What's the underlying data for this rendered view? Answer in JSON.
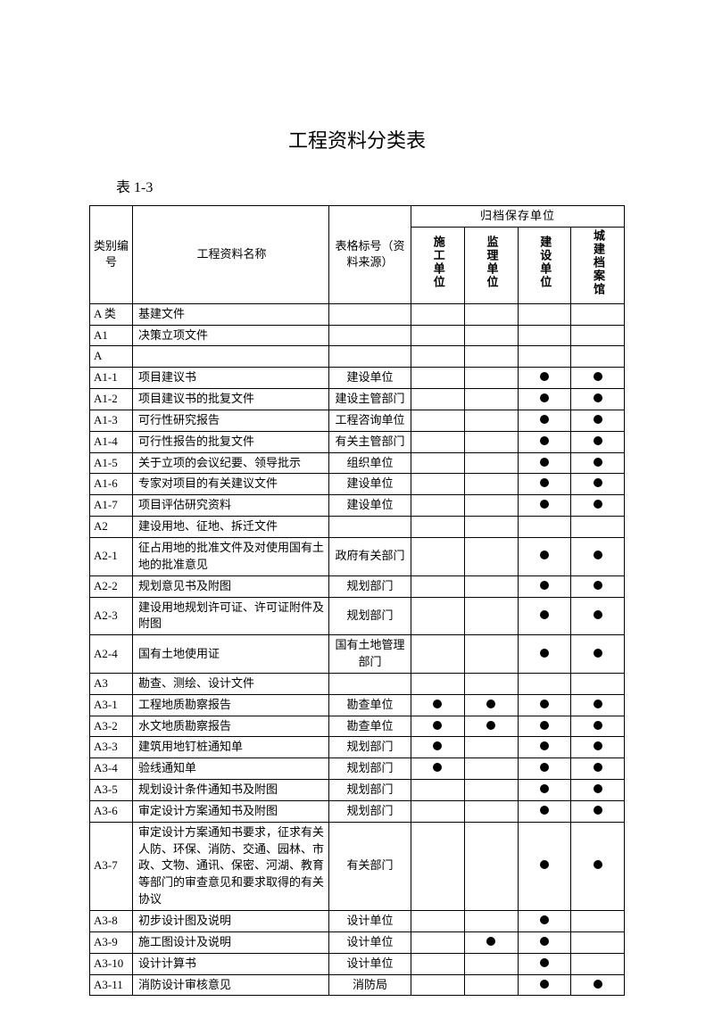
{
  "title": "工程资料分类表",
  "subtitle": "表 1-3",
  "headers": {
    "col_id": "类别编号",
    "col_name": "工程资料名称",
    "col_src": "表格标号（资料来源）",
    "archive_group": "归档保存单位",
    "unit1": "施工单位",
    "unit2": "监理单位",
    "unit3": "建设单位",
    "unit4": "城建档案馆"
  },
  "rows": [
    {
      "id": "A 类",
      "name": "基建文件",
      "src": "",
      "m": [
        0,
        0,
        0,
        0
      ]
    },
    {
      "id": "A1",
      "name": "决策立项文件",
      "src": "",
      "m": [
        0,
        0,
        0,
        0
      ]
    },
    {
      "id": "A",
      "name": "",
      "src": "",
      "m": [
        0,
        0,
        0,
        0
      ]
    },
    {
      "id": "A1-1",
      "name": "项目建议书",
      "src": "建设单位",
      "m": [
        0,
        0,
        1,
        1
      ]
    },
    {
      "id": "A1-2",
      "name": "项目建议书的批复文件",
      "src": "建设主管部门",
      "m": [
        0,
        0,
        1,
        1
      ]
    },
    {
      "id": "A1-3",
      "name": "可行性研究报告",
      "src": "工程咨询单位",
      "m": [
        0,
        0,
        1,
        1
      ]
    },
    {
      "id": "A1-4",
      "name": "可行性报告的批复文件",
      "src": "有关主管部门",
      "m": [
        0,
        0,
        1,
        1
      ]
    },
    {
      "id": "A1-5",
      "name": "关于立项的会议纪要、领导批示",
      "src": "组织单位",
      "m": [
        0,
        0,
        1,
        1
      ]
    },
    {
      "id": "A1-6",
      "name": "专家对项目的有关建议文件",
      "src": "建设单位",
      "m": [
        0,
        0,
        1,
        1
      ]
    },
    {
      "id": "A1-7",
      "name": "项目评估研究资料",
      "src": "建设单位",
      "m": [
        0,
        0,
        1,
        1
      ]
    },
    {
      "id": "A2",
      "name": "建设用地、征地、拆迁文件",
      "src": "",
      "m": [
        0,
        0,
        0,
        0
      ]
    },
    {
      "id": "A2-1",
      "name": "征占用地的批准文件及对使用国有土地的批准意见",
      "src": "政府有关部门",
      "m": [
        0,
        0,
        1,
        1
      ]
    },
    {
      "id": "A2-2",
      "name": "规划意见书及附图",
      "src": "规划部门",
      "m": [
        0,
        0,
        1,
        1
      ]
    },
    {
      "id": "A2-3",
      "name": "建设用地规划许可证、许可证附件及附图",
      "src": "规划部门",
      "m": [
        0,
        0,
        1,
        1
      ]
    },
    {
      "id": "A2-4",
      "name": "国有土地使用证",
      "src": "国有土地管理部门",
      "m": [
        0,
        0,
        1,
        1
      ]
    },
    {
      "id": "A3",
      "name": "勘查、测绘、设计文件",
      "src": "",
      "m": [
        0,
        0,
        0,
        0
      ]
    },
    {
      "id": "A3-1",
      "name": "工程地质勘察报告",
      "src": "勘查单位",
      "m": [
        1,
        1,
        1,
        1
      ]
    },
    {
      "id": "A3-2",
      "name": "水文地质勘察报告",
      "src": "勘查单位",
      "m": [
        1,
        1,
        1,
        1
      ]
    },
    {
      "id": "A3-3",
      "name": "建筑用地钉桩通知单",
      "src": "规划部门",
      "m": [
        1,
        0,
        1,
        1
      ]
    },
    {
      "id": "A3-4",
      "name": "验线通知单",
      "src": "规划部门",
      "m": [
        1,
        0,
        1,
        1
      ]
    },
    {
      "id": "A3-5",
      "name": "规划设计条件通知书及附图",
      "src": "规划部门",
      "m": [
        0,
        0,
        1,
        1
      ]
    },
    {
      "id": "A3-6",
      "name": "审定设计方案通知书及附图",
      "src": "规划部门",
      "m": [
        0,
        0,
        1,
        1
      ]
    },
    {
      "id": "A3-7",
      "name": "审定设计方案通知书要求，征求有关人防、环保、消防、交通、园林、市政、文物、通讯、保密、河湖、教育等部门的审查意见和要求取得的有关协议",
      "src": "有关部门",
      "m": [
        0,
        0,
        1,
        1
      ]
    },
    {
      "id": "A3-8",
      "name": "初步设计图及说明",
      "src": "设计单位",
      "m": [
        0,
        0,
        1,
        0
      ]
    },
    {
      "id": "A3-9",
      "name": "施工图设计及说明",
      "src": "设计单位",
      "m": [
        0,
        1,
        1,
        0
      ]
    },
    {
      "id": "A3-10",
      "name": "设计计算书",
      "src": "设计单位",
      "m": [
        0,
        0,
        1,
        0
      ]
    },
    {
      "id": "A3-11",
      "name": "消防设计审核意见",
      "src": "消防局",
      "m": [
        0,
        0,
        1,
        1
      ]
    }
  ],
  "style": {
    "bg": "#ffffff",
    "border": "#000000",
    "dot_color": "#000000",
    "title_fontsize": 22,
    "body_fontsize": 13
  }
}
